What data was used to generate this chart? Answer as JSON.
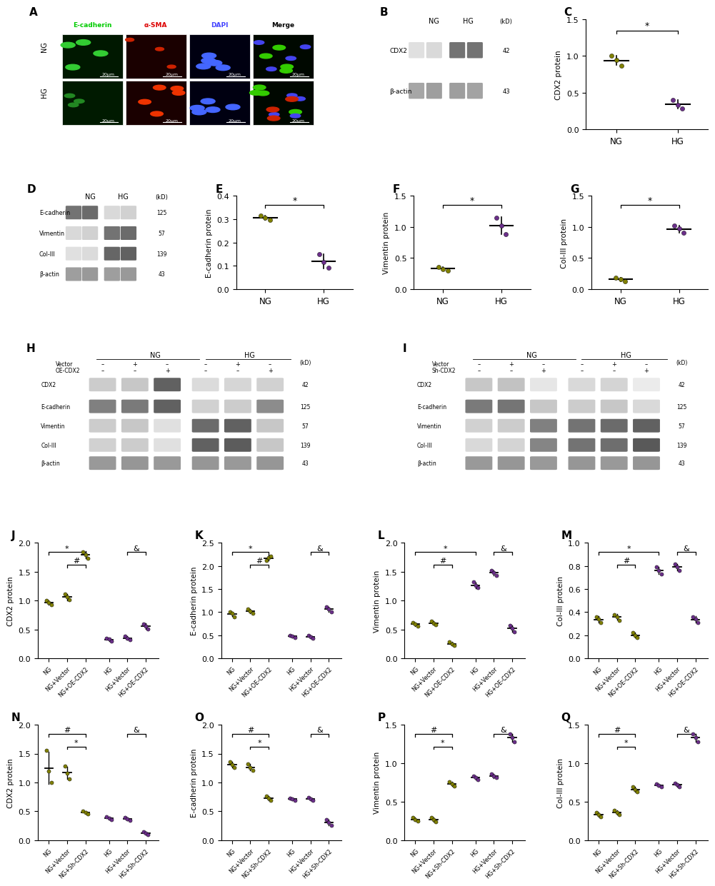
{
  "panel_C": {
    "ylabel": "CDX2 protein",
    "ylim": [
      0,
      1.5
    ],
    "yticks": [
      0.0,
      0.5,
      1.0,
      1.5
    ],
    "groups": [
      "NG",
      "HG"
    ],
    "NG_points": [
      1.0,
      0.95,
      0.87
    ],
    "HG_points": [
      0.4,
      0.33,
      0.28
    ],
    "NG_mean": 0.94,
    "HG_mean": 0.34,
    "sig_line": "*"
  },
  "panel_E": {
    "ylabel": "E-cadherin protein",
    "ylim": [
      0,
      0.4
    ],
    "yticks": [
      0.0,
      0.1,
      0.2,
      0.3,
      0.4
    ],
    "groups": [
      "NG",
      "HG"
    ],
    "NG_points": [
      0.315,
      0.305,
      0.295
    ],
    "HG_points": [
      0.15,
      0.115,
      0.09
    ],
    "NG_mean": 0.305,
    "HG_mean": 0.118,
    "sig_line": "*"
  },
  "panel_F": {
    "ylabel": "Vimentin protein",
    "ylim": [
      0,
      1.5
    ],
    "yticks": [
      0.0,
      0.5,
      1.0,
      1.5
    ],
    "groups": [
      "NG",
      "HG"
    ],
    "NG_points": [
      0.36,
      0.32,
      0.3
    ],
    "HG_points": [
      1.15,
      1.02,
      0.88
    ],
    "NG_mean": 0.327,
    "HG_mean": 1.02,
    "sig_line": "*"
  },
  "panel_G": {
    "ylabel": "Col-III protein",
    "ylim": [
      0,
      1.5
    ],
    "yticks": [
      0.0,
      0.5,
      1.0,
      1.5
    ],
    "groups": [
      "NG",
      "HG"
    ],
    "NG_points": [
      0.18,
      0.155,
      0.13
    ],
    "HG_points": [
      1.02,
      0.97,
      0.9
    ],
    "NG_mean": 0.155,
    "HG_mean": 0.963,
    "sig_line": "*"
  },
  "panel_J": {
    "ylabel": "CDX2 protein",
    "ylim": [
      0,
      2.0
    ],
    "yticks": [
      0.0,
      0.5,
      1.0,
      1.5,
      2.0
    ],
    "groups": [
      "NG",
      "NG+Vector",
      "NG+OE-CDX2",
      "HG",
      "HG+Vector",
      "HG+OE-CDX2"
    ],
    "data": [
      [
        1.0,
        0.97,
        0.93
      ],
      [
        1.12,
        1.06,
        1.01
      ],
      [
        1.85,
        1.8,
        1.73
      ],
      [
        0.35,
        0.33,
        0.3
      ],
      [
        0.38,
        0.35,
        0.32
      ],
      [
        0.6,
        0.56,
        0.51
      ]
    ],
    "means": [
      0.967,
      1.063,
      1.793,
      0.327,
      0.35,
      0.557
    ],
    "sig_lines": [
      [
        "NG",
        "NG+OE-CDX2",
        "*"
      ],
      [
        "NG+Vector",
        "NG+OE-CDX2",
        "#"
      ],
      [
        "HG+Vector",
        "HG+OE-CDX2",
        "&"
      ]
    ]
  },
  "panel_K": {
    "ylabel": "E-cadherin protein",
    "ylim": [
      0,
      2.5
    ],
    "yticks": [
      0.0,
      0.5,
      1.0,
      1.5,
      2.0,
      2.5
    ],
    "groups": [
      "NG",
      "NG+Vector",
      "NG+OE-CDX2",
      "HG",
      "HG+Vector",
      "HG+OE-CDX2"
    ],
    "data": [
      [
        1.0,
        0.97,
        0.9
      ],
      [
        1.06,
        1.02,
        0.97
      ],
      [
        2.12,
        2.18,
        2.22
      ],
      [
        0.5,
        0.48,
        0.45
      ],
      [
        0.49,
        0.46,
        0.43
      ],
      [
        1.12,
        1.06,
        1.01
      ]
    ],
    "means": [
      0.957,
      1.017,
      2.173,
      0.477,
      0.46,
      1.063
    ],
    "sig_lines": [
      [
        "NG",
        "NG+OE-CDX2",
        "*"
      ],
      [
        "NG+Vector",
        "NG+OE-CDX2",
        "#"
      ],
      [
        "HG+Vector",
        "HG+OE-CDX2",
        "&"
      ]
    ]
  },
  "panel_L": {
    "ylabel": "Vimentin protein",
    "ylim": [
      0,
      2.0
    ],
    "yticks": [
      0.0,
      0.5,
      1.0,
      1.5,
      2.0
    ],
    "groups": [
      "NG",
      "NG+Vector",
      "NG+OE-CDX2",
      "HG",
      "HG+Vector",
      "HG+OE-CDX2"
    ],
    "data": [
      [
        0.62,
        0.59,
        0.56
      ],
      [
        0.64,
        0.61,
        0.58
      ],
      [
        0.28,
        0.25,
        0.22
      ],
      [
        1.32,
        1.26,
        1.22
      ],
      [
        1.52,
        1.48,
        1.44
      ],
      [
        0.57,
        0.52,
        0.46
      ]
    ],
    "means": [
      0.59,
      0.61,
      0.25,
      1.267,
      1.48,
      0.517
    ],
    "sig_lines": [
      [
        "NG",
        "HG",
        "*"
      ],
      [
        "NG+Vector",
        "NG+OE-CDX2",
        "#"
      ],
      [
        "HG+Vector",
        "HG+OE-CDX2",
        "&"
      ]
    ]
  },
  "panel_M": {
    "ylabel": "Col-III protein",
    "ylim": [
      0,
      1.0
    ],
    "yticks": [
      0.0,
      0.2,
      0.4,
      0.6,
      0.8,
      1.0
    ],
    "groups": [
      "NG",
      "NG+Vector",
      "NG+OE-CDX2",
      "HG",
      "HG+Vector",
      "HG+OE-CDX2"
    ],
    "data": [
      [
        0.36,
        0.34,
        0.31
      ],
      [
        0.38,
        0.36,
        0.33
      ],
      [
        0.22,
        0.2,
        0.18
      ],
      [
        0.79,
        0.76,
        0.73
      ],
      [
        0.82,
        0.79,
        0.76
      ],
      [
        0.36,
        0.34,
        0.31
      ]
    ],
    "means": [
      0.337,
      0.357,
      0.2,
      0.76,
      0.79,
      0.337
    ],
    "sig_lines": [
      [
        "NG",
        "HG",
        "*"
      ],
      [
        "NG+Vector",
        "NG+OE-CDX2",
        "#"
      ],
      [
        "HG+Vector",
        "HG+OE-CDX2",
        "&"
      ]
    ]
  },
  "panel_N": {
    "ylabel": "CDX2 protein",
    "ylim": [
      0,
      2.0
    ],
    "yticks": [
      0.0,
      0.5,
      1.0,
      1.5,
      2.0
    ],
    "groups": [
      "NG",
      "NG+Vector",
      "NG+Sh-CDX2",
      "HG",
      "HG+Vector",
      "HG+Sh-CDX2"
    ],
    "data": [
      [
        1.55,
        1.2,
        1.0
      ],
      [
        1.28,
        1.16,
        1.06
      ],
      [
        0.5,
        0.48,
        0.45
      ],
      [
        0.41,
        0.38,
        0.35
      ],
      [
        0.39,
        0.37,
        0.34
      ],
      [
        0.15,
        0.12,
        0.1
      ]
    ],
    "means": [
      1.25,
      1.167,
      0.477,
      0.38,
      0.367,
      0.123
    ],
    "sig_lines": [
      [
        "NG",
        "NG+Sh-CDX2",
        "#"
      ],
      [
        "NG+Vector",
        "NG+Sh-CDX2",
        "*"
      ],
      [
        "HG+Vector",
        "HG+Sh-CDX2",
        "&"
      ]
    ]
  },
  "panel_O": {
    "ylabel": "E-cadherin protein",
    "ylim": [
      0,
      2.0
    ],
    "yticks": [
      0.0,
      0.5,
      1.0,
      1.5,
      2.0
    ],
    "groups": [
      "NG",
      "NG+Vector",
      "NG+Sh-CDX2",
      "HG",
      "HG+Vector",
      "HG+Sh-CDX2"
    ],
    "data": [
      [
        1.36,
        1.31,
        1.26
      ],
      [
        1.32,
        1.26,
        1.21
      ],
      [
        0.76,
        0.73,
        0.69
      ],
      [
        0.73,
        0.71,
        0.69
      ],
      [
        0.74,
        0.72,
        0.69
      ],
      [
        0.36,
        0.31,
        0.26
      ]
    ],
    "means": [
      1.31,
      1.263,
      0.727,
      0.71,
      0.717,
      0.31
    ],
    "sig_lines": [
      [
        "NG",
        "NG+Sh-CDX2",
        "#"
      ],
      [
        "NG+Vector",
        "NG+Sh-CDX2",
        "*"
      ],
      [
        "HG+Vector",
        "HG+Sh-CDX2",
        "&"
      ]
    ]
  },
  "panel_P": {
    "ylabel": "Vimentin protein",
    "ylim": [
      0,
      1.5
    ],
    "yticks": [
      0.0,
      0.5,
      1.0,
      1.5
    ],
    "groups": [
      "NG",
      "NG+Vector",
      "NG+Sh-CDX2",
      "HG",
      "HG+Vector",
      "HG+Sh-CDX2"
    ],
    "data": [
      [
        0.29,
        0.27,
        0.25
      ],
      [
        0.29,
        0.27,
        0.24
      ],
      [
        0.76,
        0.73,
        0.7
      ],
      [
        0.83,
        0.81,
        0.79
      ],
      [
        0.86,
        0.83,
        0.81
      ],
      [
        1.38,
        1.33,
        1.28
      ]
    ],
    "means": [
      0.27,
      0.267,
      0.73,
      0.81,
      0.833,
      1.33
    ],
    "sig_lines": [
      [
        "NG",
        "NG+Sh-CDX2",
        "#"
      ],
      [
        "NG+Vector",
        "NG+Sh-CDX2",
        "*"
      ],
      [
        "HG+Vector",
        "HG+Sh-CDX2",
        "&"
      ]
    ]
  },
  "panel_Q": {
    "ylabel": "Col-III protein",
    "ylim": [
      0,
      1.5
    ],
    "yticks": [
      0.0,
      0.5,
      1.0,
      1.5
    ],
    "groups": [
      "NG",
      "NG+Vector",
      "NG+Sh-CDX2",
      "HG",
      "HG+Vector",
      "HG+Sh-CDX2"
    ],
    "data": [
      [
        0.36,
        0.33,
        0.3
      ],
      [
        0.39,
        0.36,
        0.33
      ],
      [
        0.69,
        0.66,
        0.63
      ],
      [
        0.73,
        0.71,
        0.69
      ],
      [
        0.74,
        0.72,
        0.69
      ],
      [
        1.38,
        1.33,
        1.28
      ]
    ],
    "means": [
      0.33,
      0.36,
      0.66,
      0.71,
      0.717,
      1.33
    ],
    "sig_lines": [
      [
        "NG",
        "NG+Sh-CDX2",
        "#"
      ],
      [
        "NG+Vector",
        "NG+Sh-CDX2",
        "*"
      ],
      [
        "HG+Vector",
        "HG+Sh-CDX2",
        "&"
      ]
    ]
  },
  "olive": "#808000",
  "purple": "#6B2F8A",
  "blot_bg": "#c8c8c8",
  "blot_band": "#404040"
}
